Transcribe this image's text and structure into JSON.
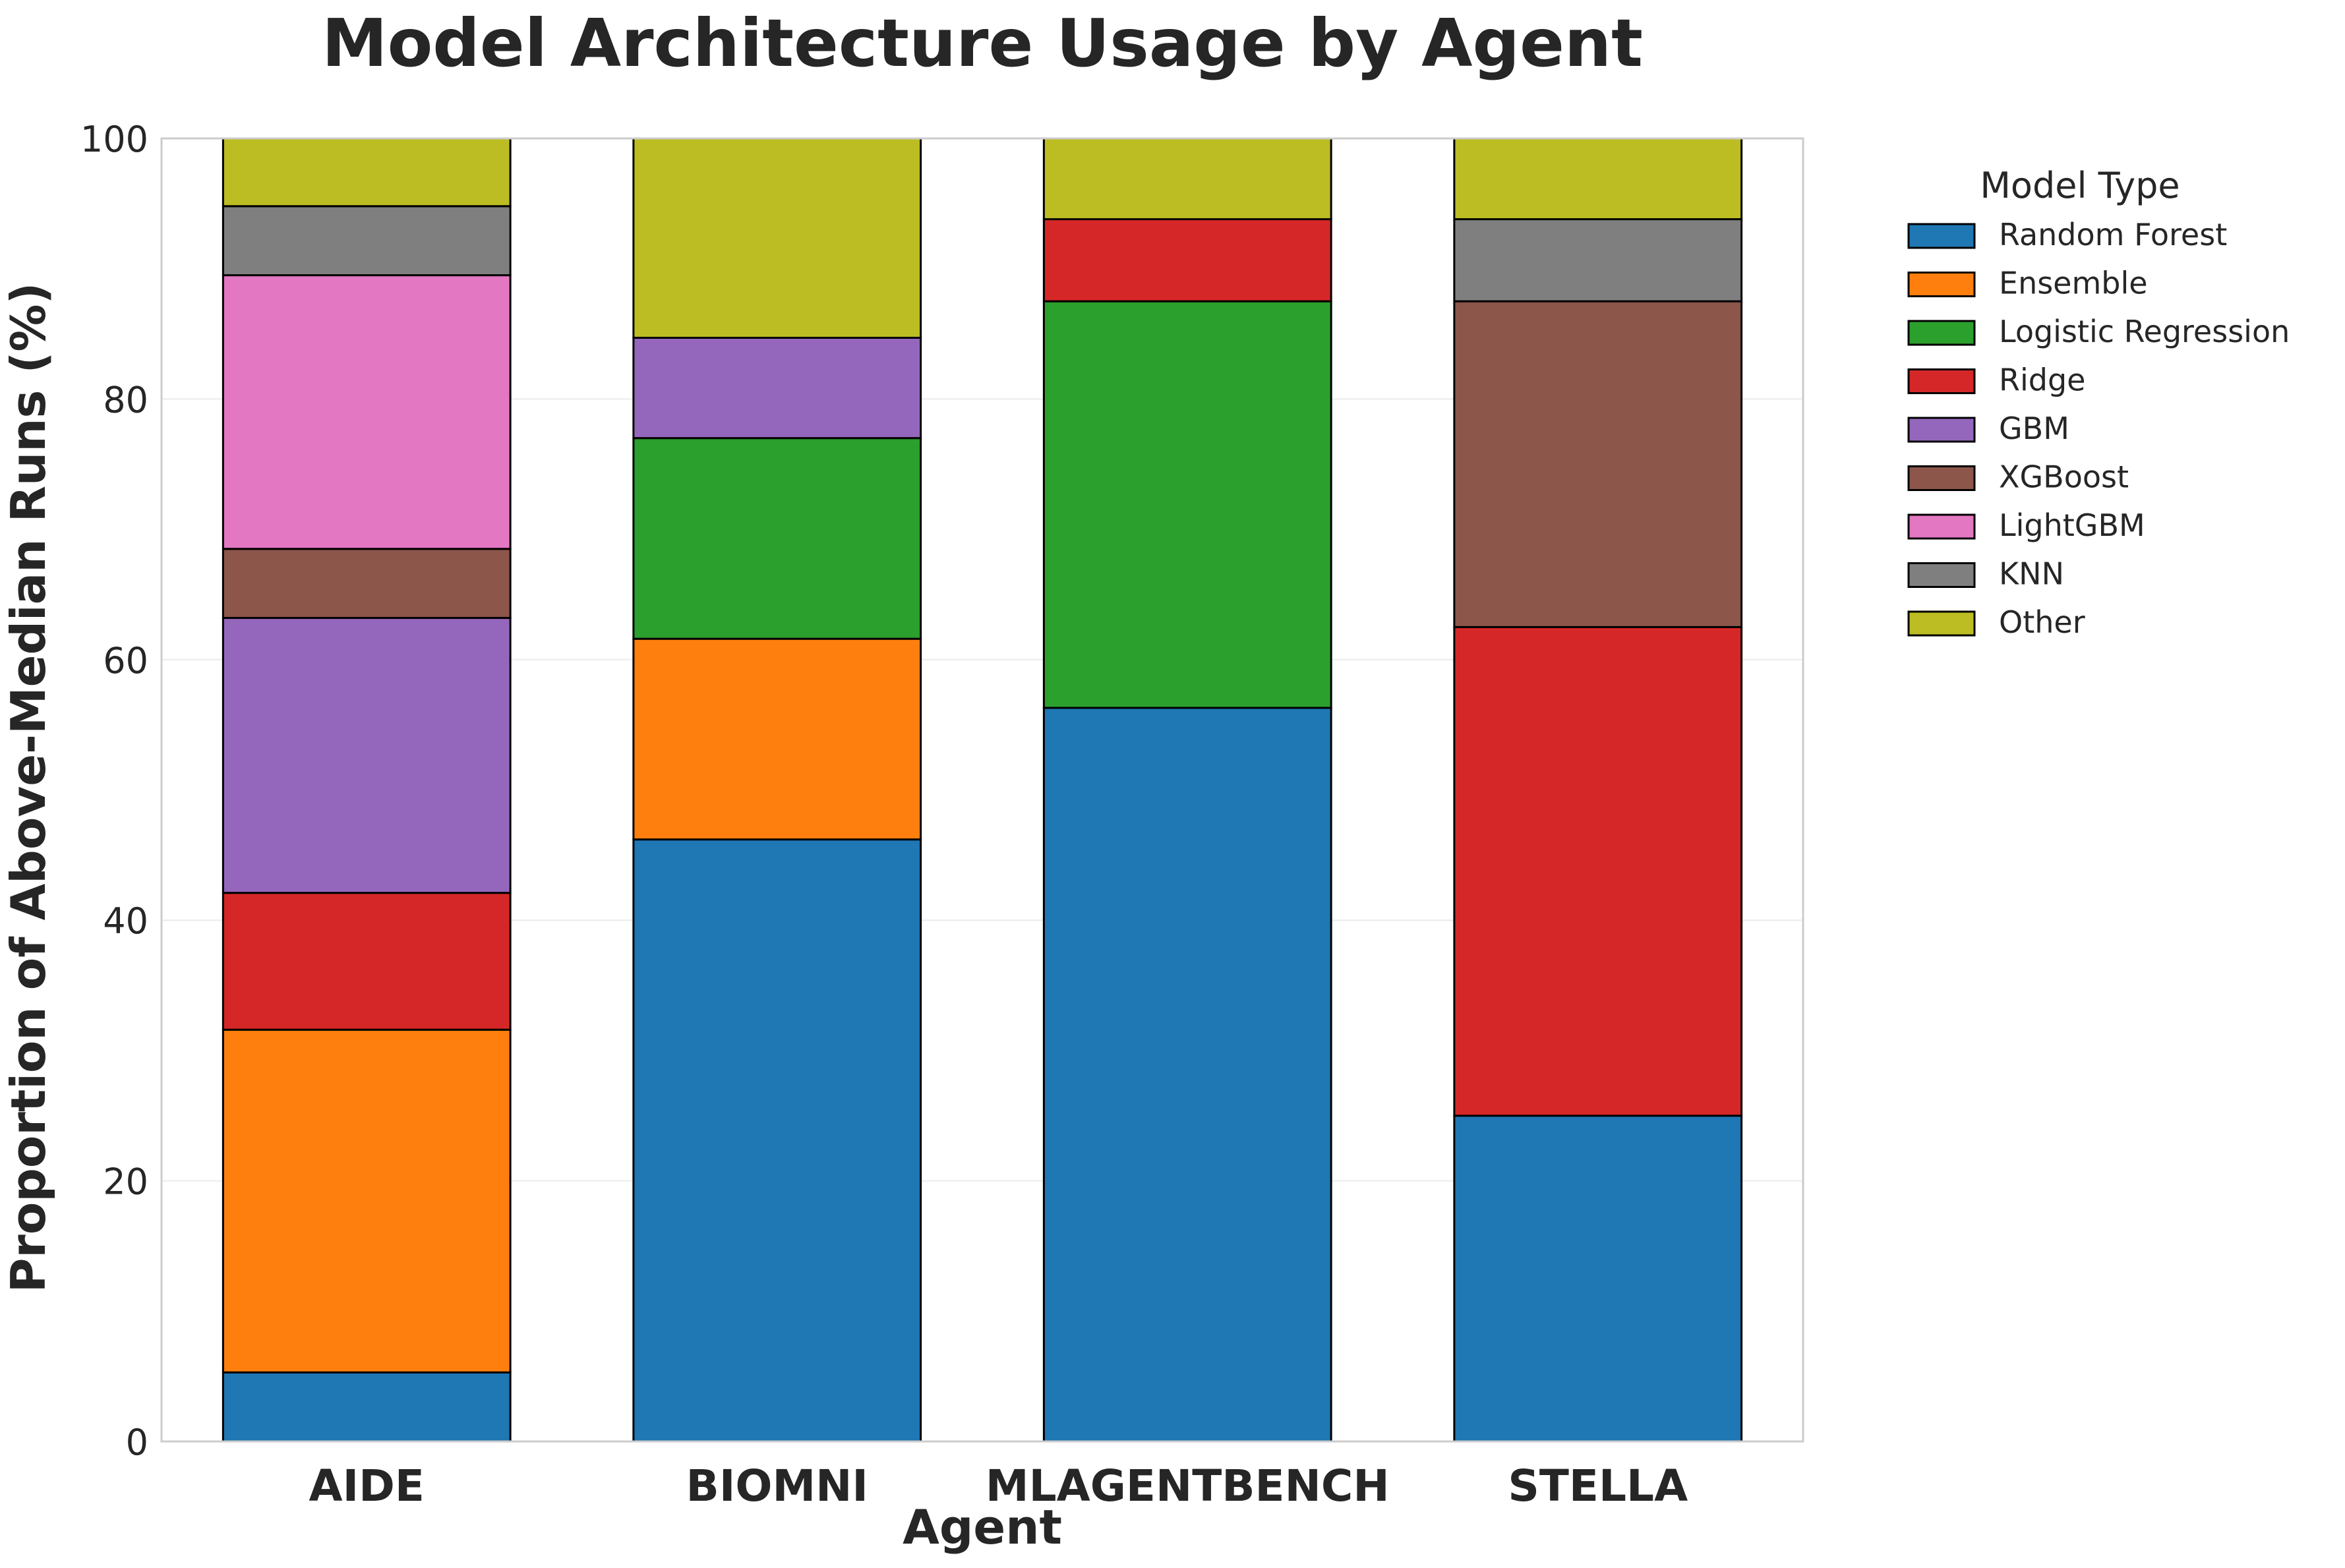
{
  "chart_data": {
    "type": "bar",
    "stacked": true,
    "title": "Model Architecture Usage by Agent",
    "xlabel": "Agent",
    "ylabel": "Proportion of Above-Median Runs (%)",
    "ylim": [
      0,
      100
    ],
    "yticks": [
      "0",
      "20",
      "40",
      "60",
      "80",
      "100"
    ],
    "grid": "horizontal",
    "legend_position": "outside-right",
    "legend_title": "Model Type",
    "categories": [
      "AIDE",
      "BIOMNI",
      "MLAGENTBENCH",
      "STELLA"
    ],
    "series": [
      {
        "name": "Random Forest",
        "color": "#1f77b4",
        "values": [
          5.3,
          46.2,
          56.3,
          25.0
        ]
      },
      {
        "name": "Ensemble",
        "color": "#ff7f0e",
        "values": [
          26.3,
          15.4,
          0,
          0
        ]
      },
      {
        "name": "Logistic Regression",
        "color": "#2ca02c",
        "values": [
          0,
          15.4,
          31.2,
          0
        ]
      },
      {
        "name": "Ridge",
        "color": "#d62728",
        "values": [
          10.5,
          0,
          6.3,
          37.5
        ]
      },
      {
        "name": "GBM",
        "color": "#9467bd",
        "values": [
          21.1,
          7.7,
          0,
          0
        ]
      },
      {
        "name": "XGBoost",
        "color": "#8c564b",
        "values": [
          5.3,
          0,
          0,
          25.0
        ]
      },
      {
        "name": "LightGBM",
        "color": "#e377c2",
        "values": [
          21.0,
          0,
          0,
          0
        ]
      },
      {
        "name": "KNN",
        "color": "#7f7f7f",
        "values": [
          5.3,
          0,
          0,
          6.3
        ]
      },
      {
        "name": "Other",
        "color": "#bcbd22",
        "values": [
          5.2,
          15.3,
          6.2,
          6.2
        ]
      }
    ]
  }
}
